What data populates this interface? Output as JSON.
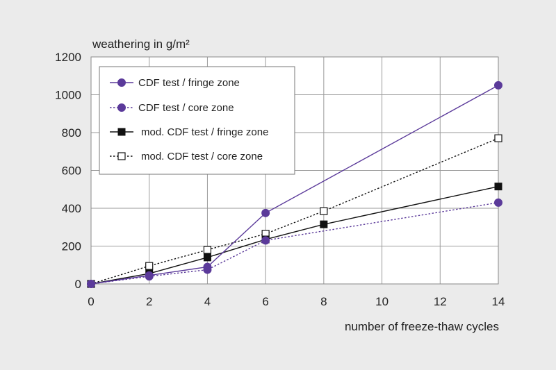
{
  "chart_data": {
    "type": "line",
    "title": "",
    "ylabel": "weathering in g/m²",
    "xlabel": "number of freeze-thaw cycles",
    "xlim": [
      0,
      14
    ],
    "ylim": [
      0,
      1200
    ],
    "x_ticks": [
      0,
      2,
      4,
      6,
      8,
      10,
      12,
      14
    ],
    "y_ticks": [
      0,
      200,
      400,
      600,
      800,
      1000,
      1200
    ],
    "grid": true,
    "legend_position": "top-left",
    "series": [
      {
        "name": "CDF test / fringe zone",
        "x": [
          0,
          2,
          4,
          6,
          14
        ],
        "values": [
          0,
          45,
          90,
          375,
          1050
        ],
        "color": "#5b3a9a",
        "dash": "solid",
        "marker": "circle-filled"
      },
      {
        "name": "CDF test / core zone",
        "x": [
          0,
          2,
          4,
          6,
          14
        ],
        "values": [
          0,
          40,
          75,
          230,
          430
        ],
        "color": "#5b3a9a",
        "dash": "dotted",
        "marker": "circle-filled"
      },
      {
        "name": "mod. CDF test / fringe zone",
        "x": [
          0,
          2,
          4,
          6,
          8,
          14
        ],
        "values": [
          0,
          55,
          140,
          235,
          315,
          515
        ],
        "color": "#111111",
        "dash": "solid",
        "marker": "square-filled"
      },
      {
        "name": "mod. CDF test / core zone",
        "x": [
          0,
          2,
          4,
          6,
          8,
          14
        ],
        "values": [
          0,
          95,
          180,
          265,
          385,
          770
        ],
        "color": "#111111",
        "dash": "dotted",
        "marker": "square-open"
      }
    ]
  }
}
